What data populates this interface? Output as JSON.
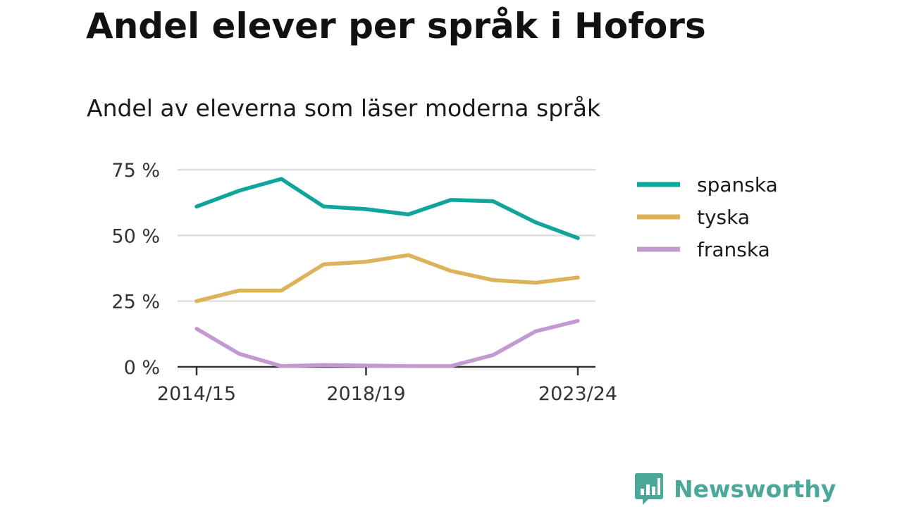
{
  "title": "Andel elever per språk i Hofors",
  "subtitle": "Andel av eleverna som läser moderna språk",
  "brand": {
    "name": "Newsworthy",
    "color": "#4aa79a",
    "icon": "bar-chart-speech-bubble-icon"
  },
  "chart_data": {
    "type": "line",
    "title": "Andel elever per språk i Hofors",
    "subtitle": "Andel av eleverna som läser moderna språk",
    "x": [
      "2014/15",
      "2015/16",
      "2016/17",
      "2017/18",
      "2018/19",
      "2019/20",
      "2020/21",
      "2021/22",
      "2022/23",
      "2023/24"
    ],
    "x_tick_labels": [
      "2014/15",
      "2018/19",
      "2023/24"
    ],
    "y_tick_labels": [
      "0 %",
      "25 %",
      "50 %",
      "75 %"
    ],
    "y_ticks": [
      0,
      25,
      50,
      75
    ],
    "ylim": [
      0,
      75
    ],
    "xlabel": "",
    "ylabel": "",
    "grid": "horizontal",
    "legend_position": "right",
    "series": [
      {
        "name": "spanska",
        "color": "#0fa59a",
        "values": [
          61,
          67,
          71.5,
          61,
          60,
          58,
          63.5,
          63,
          55,
          49
        ]
      },
      {
        "name": "tyska",
        "color": "#dcb25a",
        "values": [
          25,
          29,
          29,
          39,
          40,
          42.5,
          36.5,
          33,
          32,
          34
        ]
      },
      {
        "name": "franska",
        "color": "#c39ad0",
        "values": [
          14.5,
          5,
          0.3,
          0.7,
          0.5,
          0.3,
          0.3,
          4.5,
          13.5,
          17.5
        ]
      }
    ]
  }
}
